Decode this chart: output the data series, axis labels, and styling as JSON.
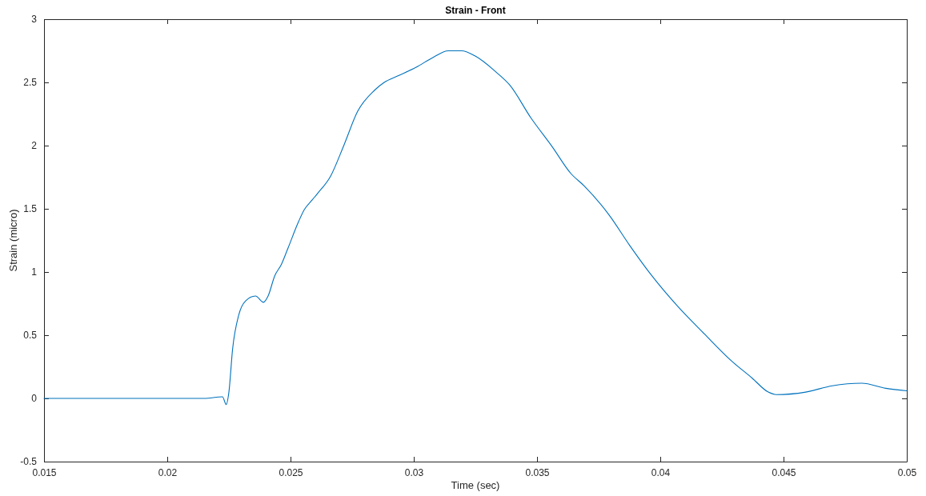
{
  "chart_data": {
    "type": "line",
    "title": "Strain - Front",
    "xlabel": "Time (sec)",
    "ylabel": "Strain (micro)",
    "xlim": [
      0.015,
      0.05
    ],
    "xticks": [
      0.015,
      0.02,
      0.025,
      0.03,
      0.035,
      0.04,
      0.045,
      0.05
    ],
    "ylim": [
      -0.5,
      3
    ],
    "yticks": [
      -0.5,
      0,
      0.5,
      1,
      1.5,
      2,
      2.5,
      3
    ],
    "grid": false,
    "line_style": "solid",
    "series": [
      {
        "color": "#0072bd",
        "x": [
          0.015,
          0.018,
          0.0215,
          0.02224,
          0.02239,
          0.0225,
          0.02265,
          0.0229,
          0.02317,
          0.02358,
          0.0239,
          0.02409,
          0.02436,
          0.02463,
          0.0249,
          0.02533,
          0.02555,
          0.02588,
          0.02609,
          0.02663,
          0.02718,
          0.02772,
          0.02842,
          0.0288,
          0.02934,
          0.0301,
          0.0308,
          0.0314,
          0.03194,
          0.03248,
          0.03335,
          0.03389,
          0.03475,
          0.03562,
          0.03637,
          0.03692,
          0.03789,
          0.03876,
          0.03962,
          0.0407,
          0.04179,
          0.04287,
          0.04373,
          0.04438,
          0.04471,
          0.0459,
          0.04698,
          0.04817,
          0.04915,
          0.05
        ],
        "values": [
          0,
          0,
          0,
          0.013,
          -0.048,
          0.05,
          0.39,
          0.66,
          0.77,
          0.81,
          0.76,
          0.81,
          0.97,
          1.06,
          1.19,
          1.4,
          1.49,
          1.57,
          1.62,
          1.76,
          2.01,
          2.27,
          2.44,
          2.5,
          2.55,
          2.62,
          2.7,
          2.75,
          2.75,
          2.71,
          2.58,
          2.48,
          2.22,
          1.99,
          1.78,
          1.68,
          1.46,
          1.21,
          0.98,
          0.73,
          0.51,
          0.3,
          0.16,
          0.05,
          0.03,
          0.05,
          0.1,
          0.12,
          0.08,
          0.06
        ]
      }
    ]
  }
}
